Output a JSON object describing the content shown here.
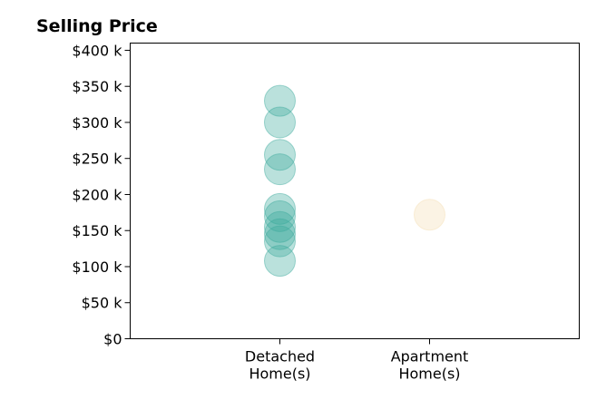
{
  "chart_data": {
    "type": "scatter",
    "title": "Selling Price",
    "xlabel": "",
    "ylabel": "",
    "categories": [
      [
        "Detached",
        "Home(s)"
      ],
      [
        "Apartment",
        "Home(s)"
      ]
    ],
    "xlim": [
      -1,
      2
    ],
    "ylim": [
      0,
      410000
    ],
    "y_ticks": [
      0,
      50000,
      100000,
      150000,
      200000,
      250000,
      300000,
      350000,
      400000
    ],
    "y_tick_labels": [
      "$0",
      "$50 k",
      "$100 k",
      "$150 k",
      "$200 k",
      "$250 k",
      "$300 k",
      "$350 k",
      "$400 k"
    ],
    "grid": false,
    "legend": "none",
    "series": [
      {
        "category_index": 0,
        "color": "#3aa99b",
        "values": [
          330000,
          300000,
          255000,
          235000,
          180000,
          170000,
          155000,
          145000,
          135000,
          108000
        ]
      },
      {
        "category_index": 1,
        "color": "#f3deb1",
        "values": [
          172000
        ]
      }
    ]
  }
}
